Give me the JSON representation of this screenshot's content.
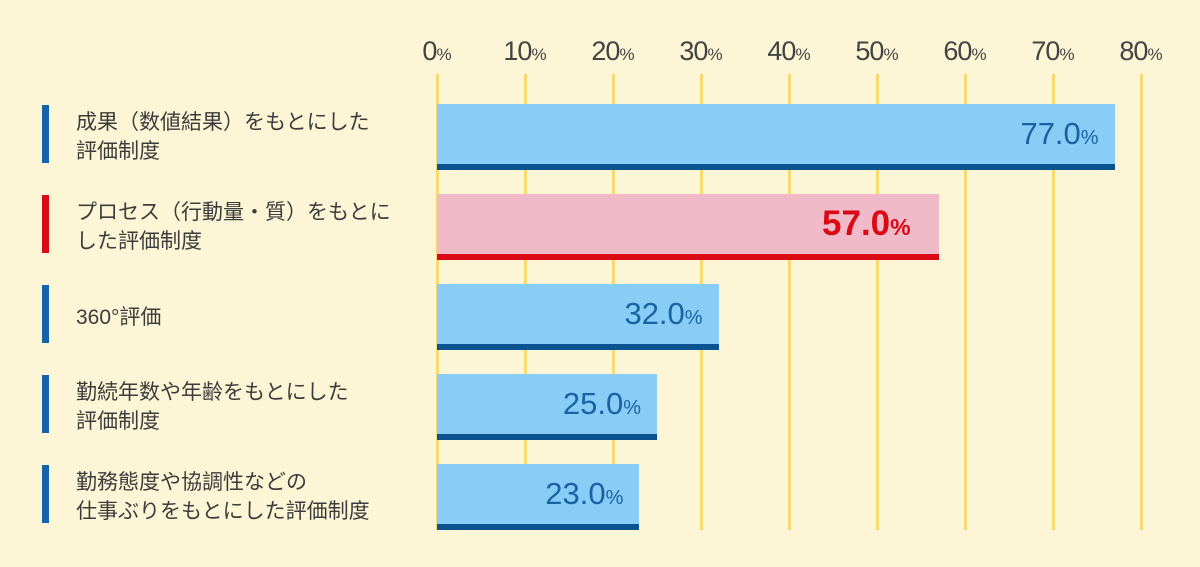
{
  "chart_data": {
    "type": "bar",
    "orientation": "horizontal",
    "title": "",
    "xlabel": "",
    "ylabel": "",
    "categories": [
      "成果（数値結果）をもとにした評価制度",
      "プロセス（行動量・質）をもとにした評価制度",
      "360°評価",
      "勤続年数や年齢をもとにした評価制度",
      "勤務態度や協調性などの仕事ぶりをもとにした評価制度"
    ],
    "values": [
      77.0,
      57.0,
      32.0,
      25.0,
      23.0
    ],
    "value_labels": [
      "77.0%",
      "57.0%",
      "32.0%",
      "25.0%",
      "23.0%"
    ],
    "unit": "%",
    "xlim": [
      0,
      80
    ],
    "xticks": [
      0,
      10,
      20,
      30,
      40,
      50,
      60,
      70,
      80
    ],
    "grid": "vertical-on",
    "legend": "none",
    "highlight_index": 1
  },
  "axis": {
    "ticks": [
      "0",
      "10",
      "20",
      "30",
      "40",
      "50",
      "60",
      "70",
      "80"
    ],
    "unit": "%"
  },
  "rows": [
    {
      "label_line1": "成果（数値結果）をもとにした",
      "label_line2": "評価制度",
      "value_label": "77.0",
      "unit": "%"
    },
    {
      "label_line1": "プロセス（行動量・質）をもとに",
      "label_line2": "した評価制度",
      "value_label": "57.0",
      "unit": "%"
    },
    {
      "label_line1": "360°評価",
      "label_line2": "",
      "value_label": "32.0",
      "unit": "%"
    },
    {
      "label_line1": "勤続年数や年齢をもとにした",
      "label_line2": "評価制度",
      "value_label": "25.0",
      "unit": "%"
    },
    {
      "label_line1": "勤務態度や協調性などの",
      "label_line2": "仕事ぶりをもとにした評価制度",
      "value_label": "23.0",
      "unit": "%"
    }
  ],
  "colors": {
    "background": "#FCF6D6",
    "gridline": "#F8DB6E",
    "bar_blue_fill": "#87CDF5",
    "bar_blue_border": "#0B5291",
    "bar_blue_value_text": "#1A62A4",
    "bar_highlight_fill": "#F0BAC9",
    "bar_highlight_border": "#DB0916",
    "bar_highlight_value_text": "#DB0916",
    "category_marker_blue": "#1563A8",
    "category_marker_red": "#DB0916",
    "label_text": "#3C3C3C",
    "tick_text": "#434343"
  }
}
